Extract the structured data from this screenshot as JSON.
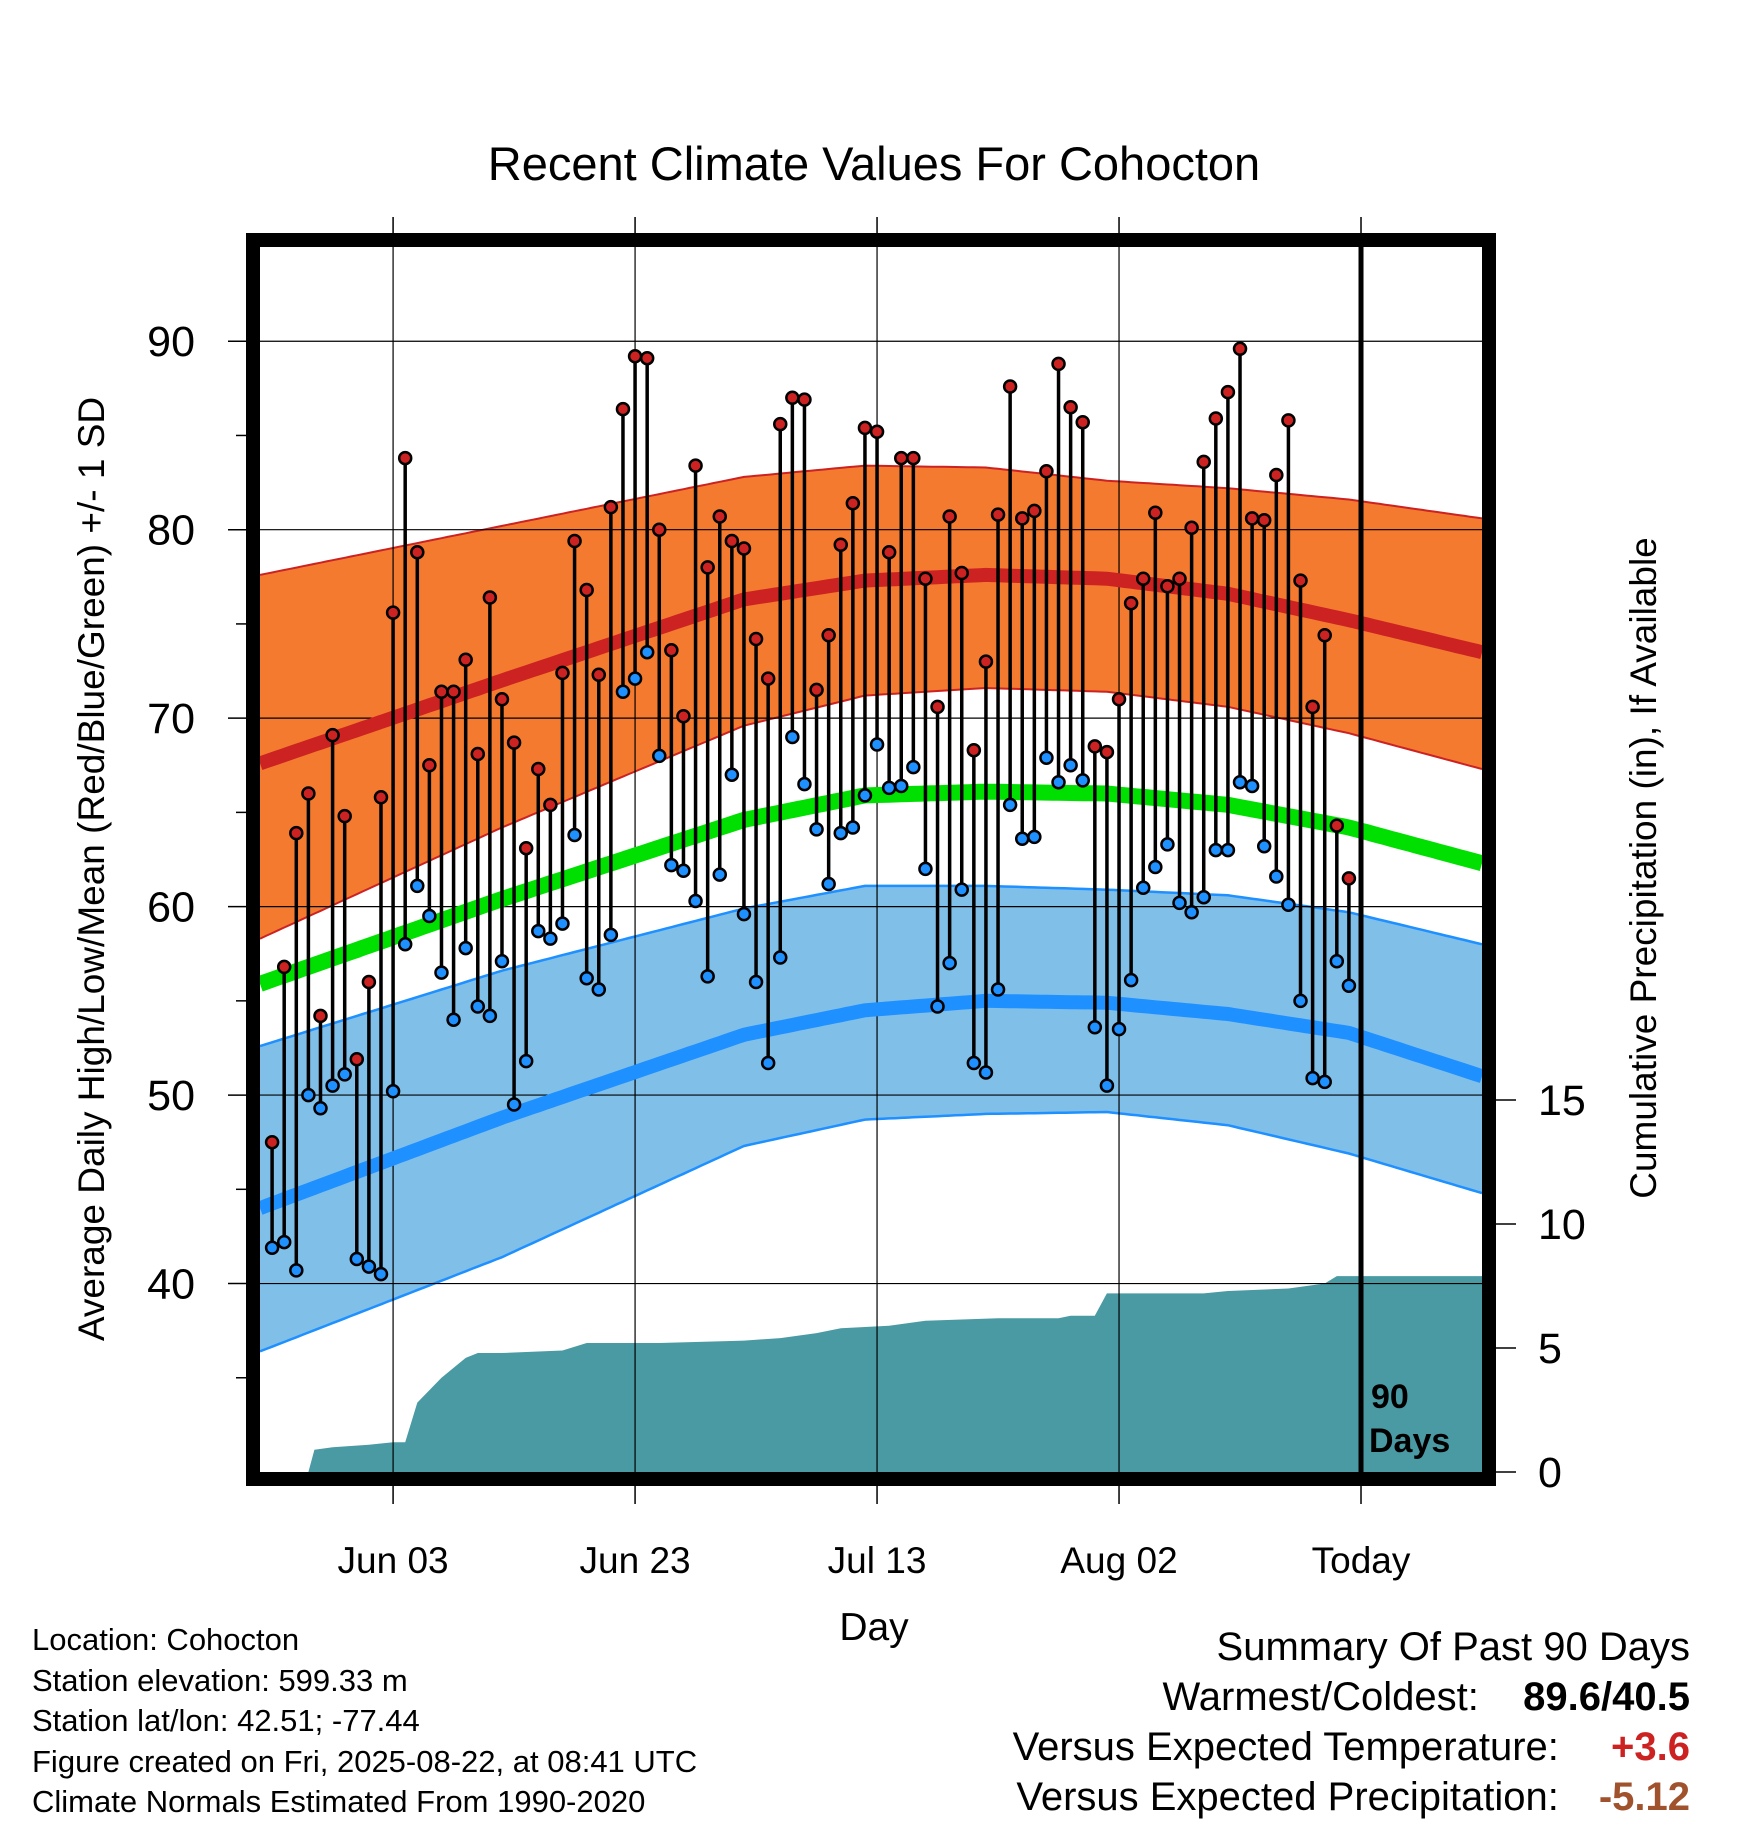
{
  "chart_data": {
    "type": "line",
    "title": "Recent Climate Values For Cohocton",
    "xlabel": "Day",
    "ylabel": "Average Daily High/Low/Mean (Red/Blue/Green) +/- 1 SD",
    "y2label": "Cumulative Precipitation (in), If Available",
    "ylim": [
      30,
      95
    ],
    "y2lim": [
      0,
      30
    ],
    "yticks": [
      40,
      50,
      60,
      70,
      80,
      90
    ],
    "y2ticks": [
      0,
      5,
      10,
      15
    ],
    "x_tick_labels": [
      {
        "day": 11,
        "label": "Jun 03"
      },
      {
        "day": 31,
        "label": "Jun 23"
      },
      {
        "day": 51,
        "label": "Jul 13"
      },
      {
        "day": 71,
        "label": "Aug 02"
      },
      {
        "day": 91,
        "label": "Today"
      }
    ],
    "marker": {
      "day": 91,
      "label_line1": "90",
      "label_line2": "Days"
    },
    "x_range": [
      0,
      101
    ],
    "grid": true,
    "normals": {
      "high_mean": [
        [
          0,
          67.6
        ],
        [
          20,
          72.0
        ],
        [
          40,
          76.3
        ],
        [
          50,
          77.3
        ],
        [
          60,
          77.6
        ],
        [
          70,
          77.4
        ],
        [
          80,
          76.6
        ],
        [
          90,
          75.2
        ],
        [
          101,
          73.5
        ]
      ],
      "high_upper": [
        [
          0,
          77.6
        ],
        [
          20,
          80.2
        ],
        [
          40,
          82.8
        ],
        [
          50,
          83.4
        ],
        [
          60,
          83.3
        ],
        [
          70,
          82.6
        ],
        [
          80,
          82.2
        ],
        [
          90,
          81.6
        ],
        [
          101,
          80.6
        ]
      ],
      "high_lower": [
        [
          0,
          58.3
        ],
        [
          20,
          64.2
        ],
        [
          40,
          69.6
        ],
        [
          50,
          71.2
        ],
        [
          60,
          71.6
        ],
        [
          70,
          71.4
        ],
        [
          80,
          70.6
        ],
        [
          90,
          69.2
        ],
        [
          101,
          67.3
        ]
      ],
      "low_mean": [
        [
          0,
          44.0
        ],
        [
          20,
          48.8
        ],
        [
          40,
          53.2
        ],
        [
          50,
          54.5
        ],
        [
          60,
          55.0
        ],
        [
          70,
          54.9
        ],
        [
          80,
          54.3
        ],
        [
          90,
          53.3
        ],
        [
          101,
          51.0
        ]
      ],
      "low_upper": [
        [
          0,
          52.6
        ],
        [
          20,
          56.6
        ],
        [
          40,
          59.9
        ],
        [
          50,
          61.1
        ],
        [
          60,
          61.1
        ],
        [
          70,
          60.9
        ],
        [
          80,
          60.6
        ],
        [
          90,
          59.7
        ],
        [
          101,
          58.0
        ]
      ],
      "low_lower": [
        [
          0,
          36.4
        ],
        [
          20,
          41.4
        ],
        [
          40,
          47.3
        ],
        [
          50,
          48.7
        ],
        [
          60,
          49.0
        ],
        [
          70,
          49.1
        ],
        [
          80,
          48.4
        ],
        [
          90,
          46.9
        ],
        [
          101,
          44.8
        ]
      ],
      "mean": [
        [
          0,
          55.9
        ],
        [
          20,
          60.4
        ],
        [
          40,
          64.6
        ],
        [
          50,
          65.9
        ],
        [
          60,
          66.1
        ],
        [
          70,
          66.0
        ],
        [
          80,
          65.4
        ],
        [
          90,
          64.2
        ],
        [
          101,
          62.3
        ]
      ]
    },
    "high_color": "#cc2222",
    "high_band_color": "#f47a30",
    "low_color": "#1e90ff",
    "low_band_color": "#7fbfe8",
    "mean_color": "#00e000",
    "precip_color": "#4a9aa4",
    "observed": {
      "start_day": 1,
      "high": [
        47.5,
        56.8,
        63.9,
        66.0,
        54.2,
        69.1,
        64.8,
        51.9,
        56.0,
        65.8,
        75.6,
        83.8,
        78.8,
        67.5,
        71.4,
        71.4,
        73.1,
        68.1,
        76.4,
        71.0,
        68.7,
        63.1,
        67.3,
        65.4,
        72.4,
        79.4,
        76.8,
        72.3,
        81.2,
        86.4,
        89.2,
        89.1,
        80.0,
        73.6,
        70.1,
        83.4,
        78.0,
        80.7,
        79.4,
        79.0,
        74.2,
        72.1,
        85.6,
        87.0,
        86.9,
        71.5,
        74.4,
        79.2,
        81.4,
        85.4,
        85.2,
        78.8,
        83.8,
        83.8,
        77.4,
        70.6,
        80.7,
        77.7,
        68.3,
        73.0,
        80.8,
        87.6,
        80.6,
        81.0,
        83.1,
        88.8,
        86.5,
        85.7,
        68.5,
        68.2,
        71.0,
        76.1,
        77.4,
        80.9,
        77.0,
        77.4,
        80.1,
        83.6,
        85.9,
        87.3,
        89.6,
        80.6,
        80.5,
        82.9,
        85.8,
        77.3,
        70.6,
        74.4,
        64.3,
        61.5
      ],
      "low": [
        41.9,
        42.2,
        40.7,
        50.0,
        49.3,
        50.5,
        51.1,
        41.3,
        40.9,
        40.5,
        50.2,
        58.0,
        61.1,
        59.5,
        56.5,
        54.0,
        57.8,
        54.7,
        54.2,
        57.1,
        49.5,
        51.8,
        58.7,
        58.3,
        59.1,
        63.8,
        56.2,
        55.6,
        58.5,
        71.4,
        72.1,
        73.5,
        68.0,
        62.2,
        61.9,
        60.3,
        56.3,
        61.7,
        67.0,
        59.6,
        56.0,
        51.7,
        57.3,
        69.0,
        66.5,
        64.1,
        61.2,
        63.9,
        64.2,
        65.9,
        68.6,
        66.3,
        66.4,
        67.4,
        62.0,
        54.7,
        57.0,
        60.9,
        51.7,
        51.2,
        55.6,
        65.4,
        63.6,
        63.7,
        67.9,
        66.6,
        67.5,
        66.7,
        53.6,
        50.5,
        53.5,
        56.1,
        61.0,
        62.1,
        63.3,
        60.2,
        59.7,
        60.5,
        63.0,
        63.0,
        66.6,
        66.4,
        63.2,
        61.6,
        60.1,
        55.0,
        50.9,
        50.7,
        57.1,
        55.8
      ]
    },
    "precip_cumulative": [
      [
        0,
        0
      ],
      [
        4,
        0
      ],
      [
        4.5,
        0.9
      ],
      [
        6,
        1.0
      ],
      [
        9,
        1.1
      ],
      [
        11,
        1.2
      ],
      [
        12,
        1.2
      ],
      [
        13,
        2.8
      ],
      [
        15,
        3.8
      ],
      [
        17,
        4.6
      ],
      [
        18,
        4.8
      ],
      [
        20,
        4.8
      ],
      [
        25,
        4.9
      ],
      [
        27,
        5.2
      ],
      [
        33,
        5.2
      ],
      [
        40,
        5.3
      ],
      [
        43,
        5.4
      ],
      [
        46,
        5.6
      ],
      [
        48,
        5.8
      ],
      [
        52,
        5.9
      ],
      [
        55,
        6.1
      ],
      [
        61,
        6.2
      ],
      [
        66,
        6.2
      ],
      [
        67,
        6.3
      ],
      [
        69,
        6.3
      ],
      [
        70,
        7.2
      ],
      [
        78,
        7.2
      ],
      [
        80,
        7.3
      ],
      [
        85,
        7.4
      ],
      [
        88,
        7.6
      ],
      [
        89,
        7.9
      ],
      [
        101,
        7.9
      ]
    ]
  },
  "footer_left": {
    "location": "Location: Cohocton",
    "elevation": "Station elevation: 599.33 m",
    "latlon": "Station lat/lon: 42.51; -77.44",
    "created": "Figure created on Fri, 2025-08-22, at 08:41 UTC",
    "normals": "Climate Normals Estimated From 1990-2020"
  },
  "summary": {
    "title": "Summary Of Past 90 Days",
    "warm_cold_label": "Warmest/Coldest:",
    "warm_cold_value": "89.6/40.5",
    "temp_label": "Versus Expected Temperature:",
    "temp_value": "+3.6",
    "precip_label": "Versus Expected Precipitation:",
    "precip_value": "-5.12",
    "temp_color": "#cc2222",
    "precip_color": "#a0522d"
  }
}
